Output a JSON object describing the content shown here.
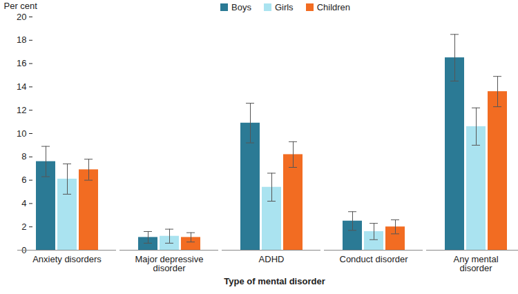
{
  "chart_data": {
    "type": "bar",
    "y_label": "Per cent",
    "x_label": "Type of mental disorder",
    "categories": [
      "Anxiety disorders",
      "Major depressive disorder",
      "ADHD",
      "Conduct disorder",
      "Any mental disorder"
    ],
    "series": [
      {
        "name": "Boys",
        "color": "#2b7a95",
        "values": [
          7.6,
          1.1,
          10.9,
          2.5,
          16.5
        ],
        "error_low": [
          6.3,
          0.6,
          9.2,
          1.7,
          14.5
        ],
        "error_high": [
          8.9,
          1.6,
          12.6,
          3.3,
          18.5
        ]
      },
      {
        "name": "Girls",
        "color": "#aae3f0",
        "values": [
          6.1,
          1.2,
          5.4,
          1.6,
          10.6
        ],
        "error_low": [
          4.8,
          0.6,
          4.2,
          0.9,
          9.0
        ],
        "error_high": [
          7.4,
          1.8,
          6.6,
          2.3,
          12.2
        ]
      },
      {
        "name": "Children",
        "color": "#f26c22",
        "values": [
          6.9,
          1.1,
          8.2,
          2.0,
          13.6
        ],
        "error_low": [
          6.0,
          0.7,
          7.1,
          1.4,
          12.3
        ],
        "error_high": [
          7.8,
          1.5,
          9.3,
          2.6,
          14.9
        ]
      }
    ],
    "ylim": [
      0,
      20
    ],
    "yticks": [
      0,
      2,
      4,
      6,
      8,
      10,
      12,
      14,
      16,
      18,
      20
    ],
    "grid": false,
    "legend": "top"
  }
}
